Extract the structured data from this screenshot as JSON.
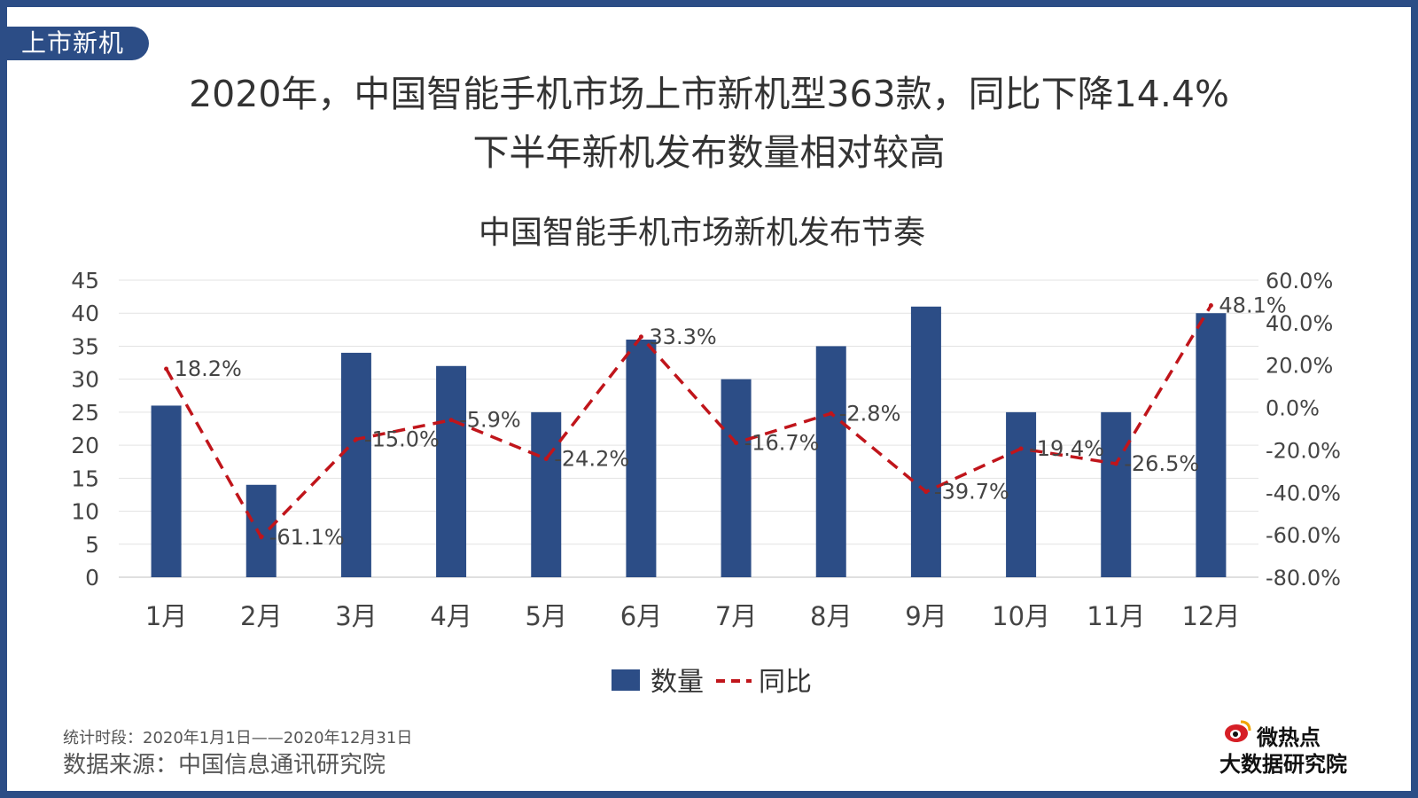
{
  "tag": "上市新机",
  "headline_1": "2020年，中国智能手机市场上市新机型363款，同比下降14.4%",
  "headline_2": "下半年新机发布数量相对较高",
  "chart_data": {
    "type": "bar",
    "title": "中国智能手机市场新机发布节奏",
    "categories": [
      "1月",
      "2月",
      "3月",
      "4月",
      "5月",
      "6月",
      "7月",
      "8月",
      "9月",
      "10月",
      "11月",
      "12月"
    ],
    "series": [
      {
        "name": "数量",
        "type": "bar",
        "axis": "left",
        "color": "#2c4d86",
        "values": [
          26,
          14,
          34,
          32,
          25,
          36,
          30,
          35,
          41,
          25,
          25,
          40
        ]
      },
      {
        "name": "同比",
        "type": "line",
        "style": "dashed",
        "axis": "right",
        "color": "#c0151b",
        "values": [
          18.2,
          -61.1,
          -15.0,
          -5.9,
          -24.2,
          33.3,
          -16.7,
          -2.8,
          -39.7,
          -19.4,
          -26.5,
          48.1
        ],
        "labels": [
          "18.2%",
          "-61.1%",
          "-15.0%",
          "-5.9%",
          "-24.2%",
          "33.3%",
          "-16.7%",
          "-2.8%",
          "-39.7%",
          "-19.4%",
          "-26.5%",
          "48.1%"
        ]
      }
    ],
    "y_left": {
      "min": 0,
      "max": 45,
      "ticks": [
        "0",
        "5",
        "10",
        "15",
        "20",
        "25",
        "30",
        "35",
        "40",
        "45"
      ]
    },
    "y_right": {
      "min": -80,
      "max": 60,
      "ticks": [
        "-80.0%",
        "-60.0%",
        "-40.0%",
        "-20.0%",
        "0.0%",
        "20.0%",
        "40.0%",
        "60.0%"
      ]
    },
    "grid": true,
    "legend_position": "bottom"
  },
  "footer": {
    "period": "统计时段：2020年1月1日——2020年12月31日",
    "source": "数据来源：中国信息通讯研究院"
  },
  "logo": {
    "line1": "微热点",
    "line2": "大数据研究院"
  }
}
